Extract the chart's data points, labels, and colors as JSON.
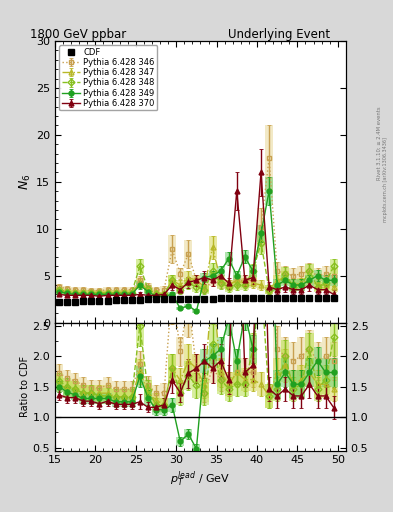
{
  "title_left": "1800 GeV ppbar",
  "title_right": "Underlying Event",
  "ylabel_main": "$N_6$",
  "ylabel_ratio": "Ratio to CDF",
  "xlabel": "$p_{T}^{lead}$ / GeV",
  "right_label1": "Rivet 3.1.10; ≥ 2.4M events",
  "right_label2": "mcplots.cern.ch [arXiv:1306.3436]",
  "xlim": [
    15,
    51
  ],
  "ylim_main": [
    0,
    30
  ],
  "ylim_ratio": [
    0.45,
    2.55
  ],
  "cdf_x": [
    15.5,
    16.5,
    17.5,
    18.5,
    19.5,
    20.5,
    21.5,
    22.5,
    23.5,
    24.5,
    25.5,
    26.5,
    27.5,
    28.5,
    29.5,
    30.5,
    31.5,
    32.5,
    33.5,
    34.5,
    35.5,
    36.5,
    37.5,
    38.5,
    39.5,
    40.5,
    41.5,
    42.5,
    43.5,
    44.5,
    45.5,
    46.5,
    47.5,
    48.5,
    49.5
  ],
  "cdf_y": [
    2.2,
    2.2,
    2.2,
    2.3,
    2.3,
    2.3,
    2.3,
    2.4,
    2.4,
    2.4,
    2.4,
    2.5,
    2.5,
    2.5,
    2.5,
    2.5,
    2.5,
    2.5,
    2.5,
    2.5,
    2.6,
    2.6,
    2.6,
    2.6,
    2.6,
    2.6,
    2.6,
    2.6,
    2.6,
    2.6,
    2.6,
    2.6,
    2.6,
    2.6,
    2.6
  ],
  "cdf_yerr": [
    0.05,
    0.05,
    0.05,
    0.05,
    0.05,
    0.05,
    0.05,
    0.05,
    0.05,
    0.05,
    0.05,
    0.05,
    0.05,
    0.05,
    0.05,
    0.05,
    0.05,
    0.05,
    0.05,
    0.05,
    0.05,
    0.05,
    0.05,
    0.05,
    0.05,
    0.05,
    0.05,
    0.05,
    0.05,
    0.05,
    0.05,
    0.05,
    0.05,
    0.05,
    0.05
  ],
  "p346_x": [
    15.5,
    16.5,
    17.5,
    18.5,
    19.5,
    20.5,
    21.5,
    22.5,
    23.5,
    24.5,
    25.5,
    26.5,
    27.5,
    28.5,
    29.5,
    30.5,
    31.5,
    32.5,
    33.5,
    34.5,
    35.5,
    36.5,
    37.5,
    38.5,
    39.5,
    40.5,
    41.5,
    42.5,
    43.5,
    44.5,
    45.5,
    46.5,
    47.5,
    48.5,
    49.5
  ],
  "p346_y": [
    3.8,
    3.6,
    3.5,
    3.5,
    3.4,
    3.4,
    3.5,
    3.5,
    3.5,
    3.5,
    4.5,
    3.8,
    3.5,
    3.5,
    7.8,
    5.2,
    7.3,
    4.5,
    3.5,
    4.5,
    4.2,
    4.0,
    4.5,
    4.5,
    4.5,
    10.2,
    17.5,
    5.5,
    5.2,
    5.0,
    5.2,
    5.5,
    5.0,
    5.2,
    5.0
  ],
  "p346_yerr": [
    0.3,
    0.3,
    0.3,
    0.3,
    0.3,
    0.3,
    0.3,
    0.3,
    0.3,
    0.3,
    0.5,
    0.4,
    0.3,
    0.4,
    1.5,
    0.6,
    1.5,
    0.6,
    0.4,
    0.6,
    0.5,
    0.5,
    0.5,
    0.6,
    0.6,
    2.0,
    3.5,
    1.0,
    0.8,
    0.8,
    0.8,
    0.8,
    0.8,
    0.8,
    0.8
  ],
  "p347_x": [
    15.5,
    16.5,
    17.5,
    18.5,
    19.5,
    20.5,
    21.5,
    22.5,
    23.5,
    24.5,
    25.5,
    26.5,
    27.5,
    28.5,
    29.5,
    30.5,
    31.5,
    32.5,
    33.5,
    34.5,
    35.5,
    36.5,
    37.5,
    38.5,
    39.5,
    40.5,
    41.5,
    42.5,
    43.5,
    44.5,
    45.5,
    46.5,
    47.5,
    48.5,
    49.5
  ],
  "p347_y": [
    3.4,
    3.2,
    3.2,
    3.2,
    3.2,
    3.2,
    3.2,
    3.2,
    3.2,
    3.2,
    4.2,
    3.5,
    3.2,
    3.0,
    4.5,
    4.0,
    4.8,
    4.5,
    3.8,
    8.0,
    4.5,
    4.0,
    4.5,
    4.2,
    4.2,
    4.0,
    3.5,
    4.5,
    4.8,
    4.0,
    4.2,
    4.5,
    4.0,
    4.0,
    3.8
  ],
  "p347_yerr": [
    0.3,
    0.3,
    0.3,
    0.3,
    0.3,
    0.3,
    0.3,
    0.3,
    0.3,
    0.3,
    0.5,
    0.4,
    0.3,
    0.3,
    0.6,
    0.5,
    0.7,
    0.6,
    0.5,
    1.2,
    0.6,
    0.5,
    0.6,
    0.5,
    0.5,
    0.5,
    0.5,
    0.6,
    0.7,
    0.6,
    0.6,
    0.6,
    0.6,
    0.6,
    0.5
  ],
  "p348_x": [
    15.5,
    16.5,
    17.5,
    18.5,
    19.5,
    20.5,
    21.5,
    22.5,
    23.5,
    24.5,
    25.5,
    26.5,
    27.5,
    28.5,
    29.5,
    30.5,
    31.5,
    32.5,
    33.5,
    34.5,
    35.5,
    36.5,
    37.5,
    38.5,
    39.5,
    40.5,
    41.5,
    42.5,
    43.5,
    44.5,
    45.5,
    46.5,
    47.5,
    48.5,
    49.5
  ],
  "p348_y": [
    3.5,
    3.3,
    3.2,
    3.2,
    3.2,
    3.1,
    3.1,
    3.2,
    3.2,
    3.2,
    6.0,
    3.6,
    3.0,
    3.0,
    4.5,
    3.5,
    4.2,
    3.8,
    3.5,
    5.5,
    4.2,
    3.8,
    4.0,
    4.0,
    5.5,
    8.5,
    3.5,
    3.8,
    5.2,
    3.8,
    4.0,
    5.5,
    3.8,
    4.2,
    6.0
  ],
  "p348_yerr": [
    0.3,
    0.3,
    0.3,
    0.3,
    0.3,
    0.3,
    0.3,
    0.3,
    0.3,
    0.3,
    0.8,
    0.4,
    0.3,
    0.3,
    0.6,
    0.5,
    0.6,
    0.5,
    0.5,
    0.8,
    0.6,
    0.5,
    0.5,
    0.5,
    0.7,
    1.2,
    0.5,
    0.5,
    0.7,
    0.5,
    0.6,
    0.7,
    0.5,
    0.6,
    0.8
  ],
  "p349_x": [
    15.5,
    16.5,
    17.5,
    18.5,
    19.5,
    20.5,
    21.5,
    22.5,
    23.5,
    24.5,
    25.5,
    26.5,
    27.5,
    28.5,
    29.5,
    30.5,
    31.5,
    32.5,
    33.5,
    34.5,
    35.5,
    36.5,
    37.5,
    38.5,
    39.5,
    40.5,
    41.5,
    42.5,
    43.5,
    44.5,
    45.5,
    46.5,
    47.5,
    48.5,
    49.5
  ],
  "p349_y": [
    3.3,
    3.1,
    3.0,
    3.0,
    3.0,
    3.0,
    3.0,
    3.0,
    3.0,
    3.0,
    4.0,
    3.3,
    2.8,
    2.8,
    3.0,
    1.5,
    1.8,
    1.2,
    4.8,
    5.0,
    5.5,
    6.8,
    5.0,
    7.0,
    5.5,
    9.5,
    14.0,
    4.0,
    4.5,
    4.0,
    4.0,
    4.5,
    5.0,
    4.5,
    4.5
  ],
  "p349_yerr": [
    0.2,
    0.2,
    0.2,
    0.2,
    0.2,
    0.2,
    0.2,
    0.2,
    0.2,
    0.2,
    0.4,
    0.3,
    0.2,
    0.2,
    0.3,
    0.2,
    0.2,
    0.2,
    0.5,
    0.5,
    0.5,
    0.7,
    0.5,
    0.7,
    0.6,
    0.9,
    1.5,
    0.6,
    0.6,
    0.6,
    0.6,
    0.6,
    0.6,
    0.6,
    0.6
  ],
  "p370_x": [
    15.5,
    16.5,
    17.5,
    18.5,
    19.5,
    20.5,
    21.5,
    22.5,
    23.5,
    24.5,
    25.5,
    26.5,
    27.5,
    28.5,
    29.5,
    30.5,
    31.5,
    32.5,
    33.5,
    34.5,
    35.5,
    36.5,
    37.5,
    38.5,
    39.5,
    40.5,
    41.5,
    42.5,
    43.5,
    44.5,
    45.5,
    46.5,
    47.5,
    48.5,
    49.5
  ],
  "p370_y": [
    3.0,
    2.9,
    2.9,
    2.9,
    2.9,
    2.8,
    2.9,
    2.9,
    2.9,
    2.9,
    3.0,
    2.9,
    2.9,
    3.0,
    4.0,
    3.5,
    4.3,
    4.5,
    4.8,
    4.5,
    5.0,
    4.2,
    14.0,
    4.5,
    4.8,
    16.0,
    3.8,
    3.5,
    3.8,
    3.5,
    3.5,
    4.0,
    3.5,
    3.5,
    3.0
  ],
  "p370_yerr": [
    0.2,
    0.2,
    0.2,
    0.2,
    0.2,
    0.2,
    0.2,
    0.2,
    0.2,
    0.2,
    0.3,
    0.2,
    0.2,
    0.3,
    0.5,
    0.4,
    0.6,
    0.6,
    0.7,
    0.6,
    0.7,
    0.6,
    2.0,
    0.6,
    0.7,
    2.5,
    0.5,
    0.5,
    0.5,
    0.5,
    0.5,
    0.6,
    0.5,
    0.5,
    0.5
  ],
  "color_346": "#c8a050",
  "color_347": "#b8b828",
  "color_348": "#88c020",
  "color_349": "#20a020",
  "color_370": "#800010",
  "band346_color": "#e8d898",
  "band347_color": "#d8d858",
  "band348_color": "#b8e050",
  "band349_color": "#70d070",
  "yticks_main": [
    0,
    5,
    10,
    15,
    20,
    25,
    30
  ],
  "yticks_ratio": [
    0.5,
    1.0,
    1.5,
    2.0,
    2.5
  ]
}
